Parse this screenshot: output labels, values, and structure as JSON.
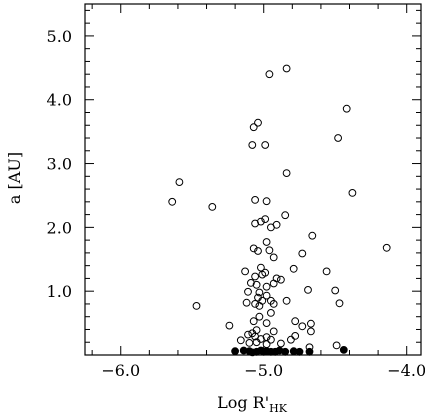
{
  "chart_data": {
    "type": "scatter",
    "xlabel": "Log R'",
    "xlabel_subscript": "HK",
    "ylabel": "a [AU]",
    "xlim": [
      -6.25,
      -3.9
    ],
    "ylim": [
      0.0,
      5.5
    ],
    "x_ticks": [
      -6.0,
      -5.0,
      -4.0
    ],
    "x_tick_labels": [
      "−6.0",
      "−5.0",
      "−4.0"
    ],
    "y_ticks": [
      1.0,
      2.0,
      3.0,
      4.0,
      5.0
    ],
    "y_tick_labels": [
      "1.0",
      "2.0",
      "3.0",
      "4.0",
      "5.0"
    ],
    "grid": false,
    "series": [
      {
        "marker": "open-circle",
        "points": [
          [
            -4.84,
            4.49
          ],
          [
            -4.96,
            4.4
          ],
          [
            -4.42,
            3.86
          ],
          [
            -5.04,
            3.64
          ],
          [
            -5.07,
            3.57
          ],
          [
            -4.48,
            3.4
          ],
          [
            -5.08,
            3.29
          ],
          [
            -4.99,
            3.29
          ],
          [
            -4.84,
            2.85
          ],
          [
            -5.59,
            2.71
          ],
          [
            -4.38,
            2.54
          ],
          [
            -5.64,
            2.4
          ],
          [
            -5.06,
            2.43
          ],
          [
            -4.98,
            2.41
          ],
          [
            -5.36,
            2.32
          ],
          [
            -4.85,
            2.19
          ],
          [
            -4.99,
            2.13
          ],
          [
            -5.06,
            2.06
          ],
          [
            -5.02,
            2.09
          ],
          [
            -4.95,
            2.0
          ],
          [
            -4.91,
            2.04
          ],
          [
            -4.66,
            1.87
          ],
          [
            -4.98,
            1.77
          ],
          [
            -5.07,
            1.67
          ],
          [
            -5.04,
            1.63
          ],
          [
            -4.96,
            1.64
          ],
          [
            -4.93,
            1.53
          ],
          [
            -4.14,
            1.68
          ],
          [
            -4.73,
            1.59
          ],
          [
            -5.02,
            1.37
          ],
          [
            -4.99,
            1.29
          ],
          [
            -5.13,
            1.31
          ],
          [
            -4.56,
            1.31
          ],
          [
            -5.06,
            1.23
          ],
          [
            -4.79,
            1.35
          ],
          [
            -5.01,
            1.26
          ],
          [
            -4.91,
            1.2
          ],
          [
            -4.88,
            1.18
          ],
          [
            -4.93,
            1.12
          ],
          [
            -5.09,
            1.13
          ],
          [
            -4.98,
            1.07
          ],
          [
            -5.05,
            1.1
          ],
          [
            -5.03,
            0.98
          ],
          [
            -4.69,
            1.02
          ],
          [
            -4.5,
            1.01
          ],
          [
            -5.11,
            0.99
          ],
          [
            -4.98,
            0.93
          ],
          [
            -5.04,
            0.9
          ],
          [
            -5.01,
            0.85
          ],
          [
            -4.95,
            0.85
          ],
          [
            -4.84,
            0.85
          ],
          [
            -4.93,
            0.8
          ],
          [
            -5.06,
            0.8
          ],
          [
            -5.12,
            0.82
          ],
          [
            -5.03,
            0.77
          ],
          [
            -5.47,
            0.77
          ],
          [
            -4.47,
            0.81
          ],
          [
            -4.95,
            0.66
          ],
          [
            -5.03,
            0.6
          ],
          [
            -5.07,
            0.53
          ],
          [
            -4.98,
            0.5
          ],
          [
            -4.78,
            0.53
          ],
          [
            -4.67,
            0.49
          ],
          [
            -5.24,
            0.46
          ],
          [
            -4.73,
            0.45
          ],
          [
            -5.05,
            0.39
          ],
          [
            -4.93,
            0.37
          ],
          [
            -5.08,
            0.34
          ],
          [
            -4.67,
            0.37
          ],
          [
            -5.06,
            0.29
          ],
          [
            -5.11,
            0.32
          ],
          [
            -4.98,
            0.28
          ],
          [
            -4.78,
            0.3
          ],
          [
            -5.16,
            0.23
          ],
          [
            -5.02,
            0.25
          ],
          [
            -4.95,
            0.24
          ],
          [
            -4.81,
            0.24
          ],
          [
            -5.1,
            0.19
          ],
          [
            -5.05,
            0.2
          ],
          [
            -4.98,
            0.17
          ],
          [
            -4.88,
            0.18
          ],
          [
            -4.68,
            0.12
          ],
          [
            -4.49,
            0.15
          ]
        ]
      },
      {
        "marker": "filled-circle",
        "points": [
          [
            -5.2,
            0.06
          ],
          [
            -5.14,
            0.07
          ],
          [
            -5.1,
            0.06
          ],
          [
            -5.08,
            0.04
          ],
          [
            -5.05,
            0.05
          ],
          [
            -5.02,
            0.07
          ],
          [
            -5.0,
            0.05
          ],
          [
            -4.98,
            0.06
          ],
          [
            -4.95,
            0.05
          ],
          [
            -4.92,
            0.05
          ],
          [
            -4.89,
            0.07
          ],
          [
            -4.85,
            0.05
          ],
          [
            -4.79,
            0.06
          ],
          [
            -4.75,
            0.05
          ],
          [
            -4.68,
            0.05
          ],
          [
            -4.44,
            0.08
          ]
        ]
      }
    ]
  }
}
